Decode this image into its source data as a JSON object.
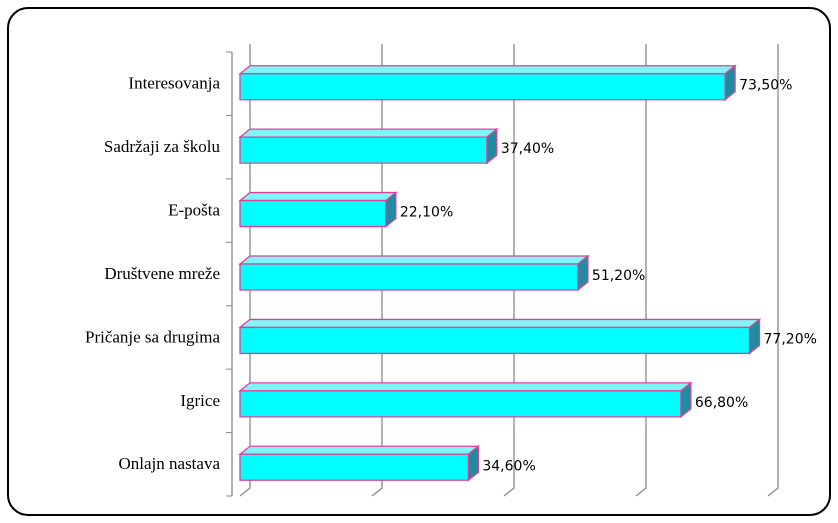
{
  "chart_data": {
    "type": "bar3d-horizontal",
    "categories": [
      "Interesovanja",
      "Sadržaji za školu",
      "E-pošta",
      "Društvene mreže",
      "Pričanje sa drugima",
      "Igrice",
      "Onlajn nastava"
    ],
    "values": [
      73.5,
      37.4,
      22.1,
      51.2,
      77.2,
      66.8,
      34.6
    ],
    "value_labels": [
      "73,50%",
      "37,40%",
      "22,10%",
      "51,20%",
      "77,20%",
      "66,80%",
      "34,60%"
    ],
    "color": "#00ffff",
    "edge_color": "#e0409a",
    "xlim": [
      0,
      80
    ],
    "xticks": [
      0,
      20,
      40,
      60,
      80
    ],
    "grid": true
  }
}
